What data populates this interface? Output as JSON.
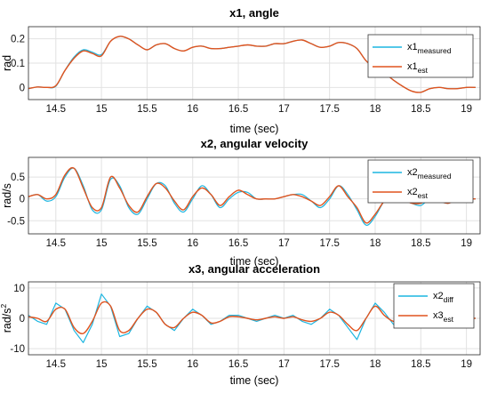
{
  "colors": {
    "measured": "#1CB5E0",
    "estimate": "#E0531E",
    "grid": "#e2e2e2",
    "axis": "#262626"
  },
  "chart_data": [
    {
      "type": "line",
      "title": "x1, angle",
      "xlabel": "time (sec)",
      "ylabel": "rad",
      "ylabel_sup": "",
      "xlim": [
        14.2,
        19.15
      ],
      "ylim": [
        -0.05,
        0.25
      ],
      "xticks": [
        "14.5",
        "15",
        "15.5",
        "16",
        "16.5",
        "17",
        "17.5",
        "18",
        "18.5",
        "19"
      ],
      "xtick_values": [
        14.5,
        15,
        15.5,
        16,
        16.5,
        17,
        17.5,
        18,
        18.5,
        19
      ],
      "yticks": [
        "0",
        "0.1",
        "0.2"
      ],
      "ytick_values": [
        0,
        0.1,
        0.2
      ],
      "grid": true,
      "legend": "top-right",
      "x": [
        14.2,
        14.3,
        14.4,
        14.5,
        14.6,
        14.7,
        14.8,
        14.9,
        15,
        15.1,
        15.2,
        15.3,
        15.4,
        15.5,
        15.6,
        15.7,
        15.8,
        15.9,
        16,
        16.1,
        16.2,
        16.3,
        16.4,
        16.5,
        16.6,
        16.7,
        16.8,
        16.9,
        17,
        17.1,
        17.2,
        17.3,
        17.4,
        17.5,
        17.6,
        17.7,
        17.8,
        17.9,
        18,
        18.1,
        18.2,
        18.3,
        18.4,
        18.5,
        18.6,
        18.7,
        18.8,
        18.9,
        19,
        19.1
      ],
      "series": [
        {
          "name": "x1",
          "sub": "measured",
          "values": [
            -0.005,
            0.002,
            0.0,
            0.005,
            0.07,
            0.125,
            0.155,
            0.145,
            0.135,
            0.19,
            0.21,
            0.2,
            0.175,
            0.155,
            0.175,
            0.18,
            0.16,
            0.15,
            0.165,
            0.17,
            0.16,
            0.16,
            0.165,
            0.17,
            0.175,
            0.17,
            0.17,
            0.18,
            0.18,
            0.19,
            0.195,
            0.18,
            0.165,
            0.17,
            0.185,
            0.18,
            0.16,
            0.11,
            0.08,
            0.06,
            0.03,
            0.005,
            -0.015,
            -0.02,
            -0.005,
            0.0,
            -0.005,
            -0.005,
            0.0,
            0.0
          ]
        },
        {
          "name": "x1",
          "sub": "est",
          "values": [
            -0.005,
            0.002,
            0.0,
            0.007,
            0.07,
            0.12,
            0.15,
            0.14,
            0.13,
            0.19,
            0.21,
            0.2,
            0.175,
            0.155,
            0.175,
            0.18,
            0.16,
            0.15,
            0.165,
            0.17,
            0.16,
            0.16,
            0.165,
            0.17,
            0.175,
            0.17,
            0.17,
            0.18,
            0.18,
            0.19,
            0.195,
            0.18,
            0.165,
            0.17,
            0.185,
            0.18,
            0.16,
            0.11,
            0.08,
            0.06,
            0.03,
            0.005,
            -0.015,
            -0.02,
            -0.005,
            0.0,
            -0.005,
            -0.005,
            0.0,
            0.0
          ]
        }
      ]
    },
    {
      "type": "line",
      "title": "x2, angular velocity",
      "xlabel": "time (sec)",
      "ylabel": "rad/s",
      "ylabel_sup": "",
      "xlim": [
        14.2,
        19.15
      ],
      "ylim": [
        -0.8,
        0.95
      ],
      "xticks": [
        "14.5",
        "15",
        "15.5",
        "16",
        "16.5",
        "17",
        "17.5",
        "18",
        "18.5",
        "19"
      ],
      "xtick_values": [
        14.5,
        15,
        15.5,
        16,
        16.5,
        17,
        17.5,
        18,
        18.5,
        19
      ],
      "yticks": [
        "-0.5",
        "0",
        "0.5"
      ],
      "ytick_values": [
        -0.5,
        0,
        0.5
      ],
      "grid": true,
      "legend": "top-right",
      "x": [
        14.2,
        14.3,
        14.4,
        14.5,
        14.6,
        14.7,
        14.8,
        14.9,
        15,
        15.1,
        15.2,
        15.3,
        15.4,
        15.5,
        15.6,
        15.7,
        15.8,
        15.9,
        16,
        16.1,
        16.2,
        16.3,
        16.4,
        16.5,
        16.6,
        16.7,
        16.8,
        16.9,
        17,
        17.1,
        17.2,
        17.3,
        17.4,
        17.5,
        17.6,
        17.7,
        17.8,
        17.9,
        18,
        18.1,
        18.2,
        18.3,
        18.4,
        18.5,
        18.6,
        18.7,
        18.8,
        18.9,
        19,
        19.1
      ],
      "series": [
        {
          "name": "x2",
          "sub": "measured",
          "values": [
            0.05,
            0.1,
            -0.05,
            0.05,
            0.5,
            0.7,
            0.3,
            -0.25,
            -0.25,
            0.45,
            0.3,
            -0.2,
            -0.35,
            0.0,
            0.35,
            0.3,
            -0.1,
            -0.3,
            0.0,
            0.3,
            0.1,
            -0.2,
            0.0,
            0.15,
            0.15,
            0.0,
            0.0,
            0.0,
            0.05,
            0.1,
            0.1,
            -0.05,
            -0.2,
            0.0,
            0.3,
            0.1,
            -0.25,
            -0.6,
            -0.4,
            -0.05,
            0.1,
            0.0,
            -0.1,
            -0.15,
            0.0,
            -0.05,
            -0.1,
            0.0,
            0.0,
            0.0
          ]
        },
        {
          "name": "x2",
          "sub": "est",
          "values": [
            0.05,
            0.1,
            0.0,
            0.1,
            0.55,
            0.7,
            0.25,
            -0.2,
            -0.2,
            0.5,
            0.25,
            -0.15,
            -0.3,
            0.05,
            0.35,
            0.25,
            -0.05,
            -0.25,
            0.05,
            0.25,
            0.1,
            -0.15,
            0.05,
            0.2,
            0.1,
            0.0,
            0.0,
            0.0,
            0.05,
            0.1,
            0.05,
            -0.05,
            -0.15,
            0.05,
            0.3,
            0.05,
            -0.2,
            -0.55,
            -0.35,
            -0.05,
            0.1,
            0.0,
            -0.1,
            -0.1,
            0.0,
            -0.05,
            -0.1,
            0.0,
            0.0,
            0.0
          ]
        }
      ]
    },
    {
      "type": "line",
      "title": "x3, angular acceleration",
      "xlabel": "time (sec)",
      "ylabel": "rad/s",
      "ylabel_sup": "2",
      "xlim": [
        14.2,
        19.15
      ],
      "ylim": [
        -12,
        12
      ],
      "xticks": [
        "14.5",
        "15",
        "15.5",
        "16",
        "16.5",
        "17",
        "17.5",
        "18",
        "18.5",
        "19"
      ],
      "xtick_values": [
        14.5,
        15,
        15.5,
        16,
        16.5,
        17,
        17.5,
        18,
        18.5,
        19
      ],
      "yticks": [
        "-10",
        "0",
        "10"
      ],
      "ytick_values": [
        -10,
        0,
        10
      ],
      "grid": true,
      "legend": "top-right",
      "x": [
        14.2,
        14.3,
        14.4,
        14.5,
        14.6,
        14.7,
        14.8,
        14.9,
        15,
        15.1,
        15.2,
        15.3,
        15.4,
        15.5,
        15.6,
        15.7,
        15.8,
        15.9,
        16,
        16.1,
        16.2,
        16.3,
        16.4,
        16.5,
        16.6,
        16.7,
        16.8,
        16.9,
        17,
        17.1,
        17.2,
        17.3,
        17.4,
        17.5,
        17.6,
        17.7,
        17.8,
        17.9,
        18,
        18.1,
        18.2,
        18.3,
        18.4,
        18.5,
        18.6,
        18.7,
        18.8,
        18.9,
        19,
        19.1
      ],
      "series": [
        {
          "name": "x2",
          "sub": "diff",
          "values": [
            1,
            -1,
            -2,
            5,
            3,
            -4,
            -8,
            -2,
            8,
            4,
            -6,
            -5,
            0,
            4,
            2,
            -2,
            -4,
            0,
            3,
            1,
            -2,
            -1,
            1,
            1,
            0,
            -1,
            0,
            1,
            0,
            1,
            -1,
            -2,
            0,
            3,
            1,
            -3,
            -7,
            0,
            5,
            2,
            -2,
            -1,
            -1,
            0,
            0,
            0,
            0,
            0,
            0,
            0
          ]
        },
        {
          "name": "x3",
          "sub": "est",
          "values": [
            0.5,
            0,
            -1,
            3,
            3,
            -3,
            -5,
            -1,
            5,
            4,
            -4,
            -4,
            0,
            3,
            2,
            -2,
            -3,
            0,
            2,
            1,
            -1.5,
            -1,
            0.5,
            0.5,
            0,
            -0.5,
            0,
            0.5,
            0,
            0.5,
            -0.5,
            -1,
            0,
            2,
            1,
            -2,
            -4,
            0,
            4,
            1,
            -1,
            -0.5,
            -0.5,
            0,
            0,
            0,
            0,
            0,
            0,
            0
          ]
        }
      ]
    }
  ]
}
